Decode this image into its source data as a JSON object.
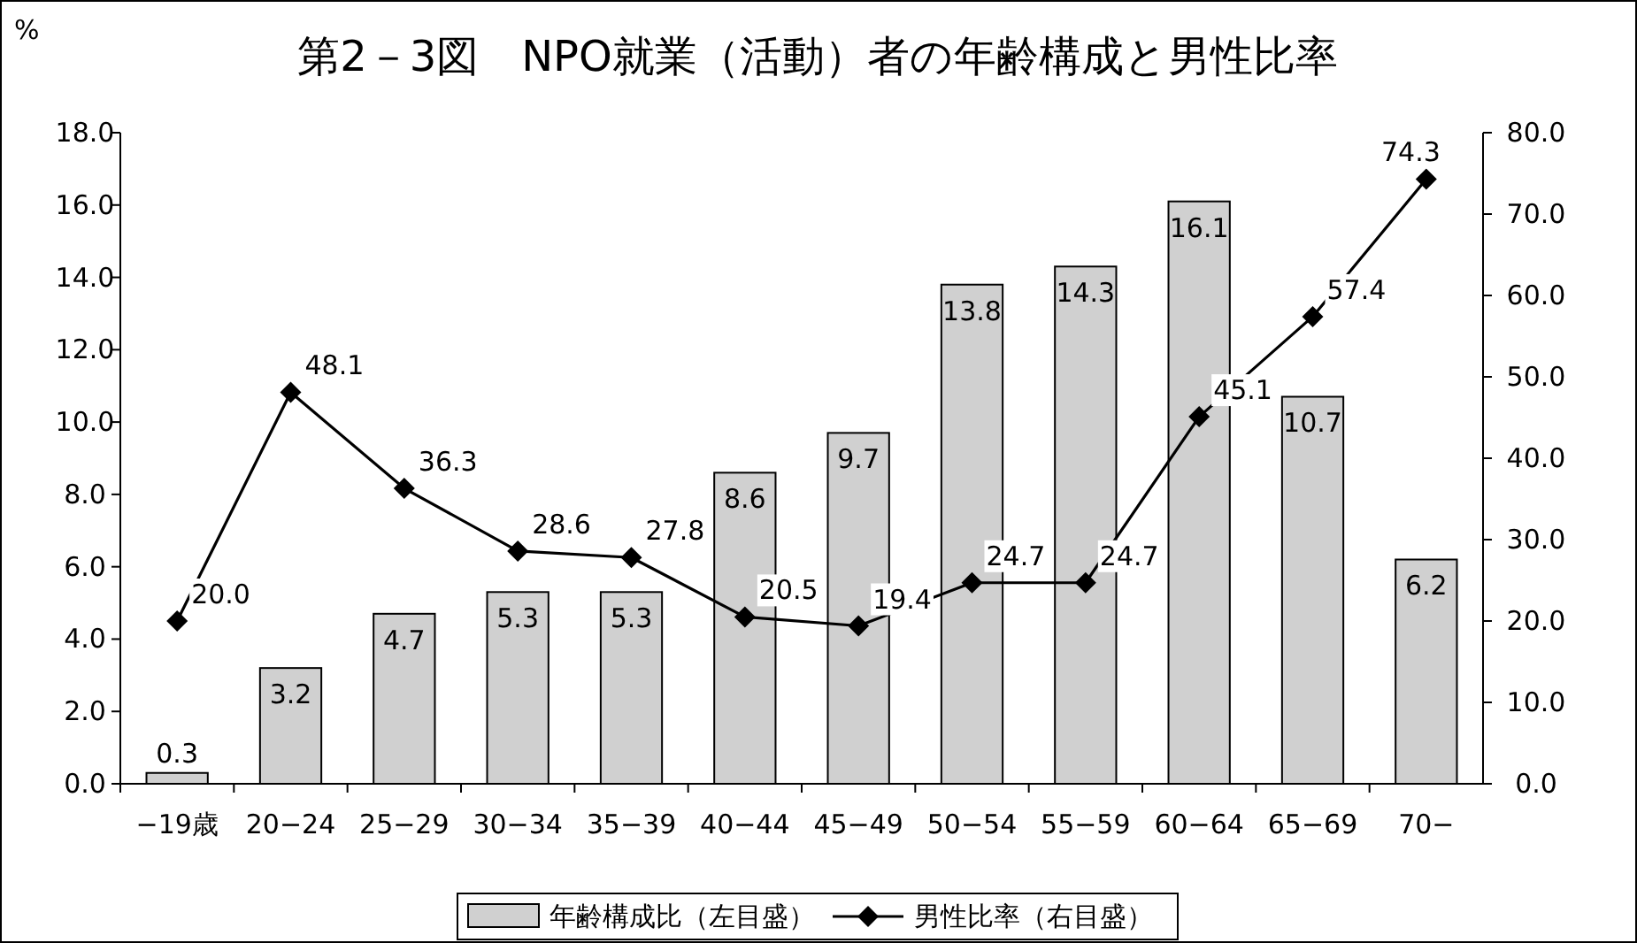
{
  "chart_data": {
    "type": "bar",
    "title": "第2－3図　NPO就業（活動）者の年齢構成と男性比率",
    "ylabel": "%",
    "categories": [
      "−19歳",
      "20−24",
      "25−29",
      "30−34",
      "35−39",
      "40−44",
      "45−49",
      "50−54",
      "55−59",
      "60−64",
      "65−69",
      "70−"
    ],
    "series": [
      {
        "name": "年齢構成比（左目盛）",
        "color": "#d0d0d0",
        "values": [
          0.3,
          3.2,
          4.7,
          5.3,
          5.3,
          8.6,
          9.7,
          13.8,
          14.3,
          16.1,
          10.7,
          6.2
        ],
        "value_labels": [
          "0.3",
          "3.2",
          "4.7",
          "5.3",
          "5.3",
          "8.6",
          "9.7",
          "13.8",
          "14.3",
          "16.1",
          "10.7",
          "6.2"
        ]
      },
      {
        "name": "男性比率（右目盛）",
        "type": "line",
        "axis": "y2",
        "color": "#000000",
        "marker": "diamond",
        "values": [
          20.0,
          48.1,
          36.3,
          28.6,
          27.8,
          20.5,
          19.4,
          24.7,
          24.7,
          45.1,
          57.4,
          74.3
        ],
        "value_labels": [
          "20.0",
          "48.1",
          "36.3",
          "28.6",
          "27.8",
          "20.5",
          "19.4",
          "24.7",
          "24.7",
          "45.1",
          "57.4",
          "74.3"
        ]
      }
    ],
    "ylim": [
      0,
      18
    ],
    "yticks": [
      {
        "value": 0,
        "label": "0.0"
      },
      {
        "value": 2,
        "label": "2.0"
      },
      {
        "value": 4,
        "label": "4.0"
      },
      {
        "value": 6,
        "label": "6.0"
      },
      {
        "value": 8,
        "label": "8.0"
      },
      {
        "value": 10,
        "label": "10.0"
      },
      {
        "value": 12,
        "label": "12.0"
      },
      {
        "value": 14,
        "label": "14.0"
      },
      {
        "value": 16,
        "label": "16.0"
      },
      {
        "value": 18,
        "label": "18.0"
      }
    ],
    "y2lim": [
      0,
      80
    ],
    "y2ticks": [
      {
        "value": 0,
        "label": "0.0"
      },
      {
        "value": 10,
        "label": "10.0"
      },
      {
        "value": 20,
        "label": "20.0"
      },
      {
        "value": 30,
        "label": "30.0"
      },
      {
        "value": 40,
        "label": "40.0"
      },
      {
        "value": 50,
        "label": "50.0"
      },
      {
        "value": 60,
        "label": "60.0"
      },
      {
        "value": 70,
        "label": "70.0"
      },
      {
        "value": 80,
        "label": "80.0"
      }
    ],
    "legend": "bottom"
  }
}
